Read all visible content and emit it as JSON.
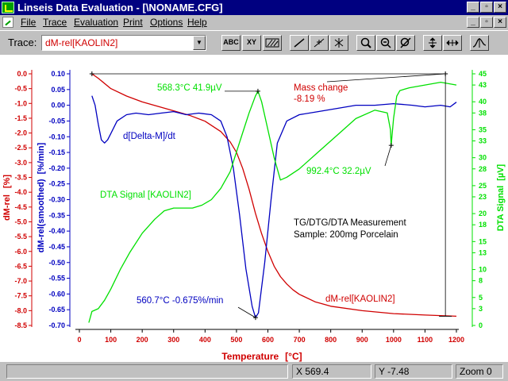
{
  "window": {
    "title": "Linseis Data Evaluation - [\\NONAME.CFG]"
  },
  "menu": [
    "File",
    "Trace",
    "Evaluation",
    "Print",
    "Options",
    "Help"
  ],
  "toolbar": {
    "trace_label": "Trace:",
    "trace_value": "dM-rel[KAOLIN2]",
    "tool_abc": "ABC",
    "tool_xy": "XY"
  },
  "status": {
    "x": "X  569.4",
    "y": "Y -7.48",
    "zoom": "Zoom 0"
  },
  "colors": {
    "dm": "#d00000",
    "dtg": "#0000c0",
    "dta": "#00e000"
  },
  "chart_data": {
    "type": "line",
    "x_ticks": [
      "0",
      "100",
      "200",
      "300",
      "400",
      "500",
      "600",
      "700",
      "800",
      "900",
      "1000",
      "1100",
      "1200"
    ],
    "xlabel": "Temperature",
    "xunit": "[°C]",
    "xlim": [
      0,
      1200
    ],
    "axes": {
      "dm": {
        "title": "dM-rel",
        "unit": "[%]",
        "ticks": [
          "0.0",
          "-0.5",
          "-1.0",
          "-1.5",
          "-2.0",
          "-2.5",
          "-3.0",
          "-3.5",
          "-4.0",
          "-4.5",
          "-5.0",
          "-5.5",
          "-6.0",
          "-6.5",
          "-7.0",
          "-7.5",
          "-8.0",
          "-8.5"
        ],
        "range": [
          -8.5,
          0.0
        ]
      },
      "dtg": {
        "title": "dM-rel(smoothed)",
        "unit": "[%/min]",
        "ticks": [
          "0.10",
          "0.05",
          "0.00",
          "-0.05",
          "-0.10",
          "-0.15",
          "-0.20",
          "-0.25",
          "-0.30",
          "-0.35",
          "-0.40",
          "-0.45",
          "-0.50",
          "-0.55",
          "-0.60",
          "-0.65",
          "-0.70"
        ],
        "range": [
          -0.7,
          0.1
        ]
      },
      "dta": {
        "title": "DTA Signal",
        "unit": "[µV]",
        "ticks": [
          "45",
          "43",
          "40",
          "38",
          "35",
          "33",
          "30",
          "28",
          "25",
          "23",
          "20",
          "18",
          "15",
          "13",
          "10",
          "8",
          "5",
          "3",
          "0"
        ],
        "range": [
          0,
          45
        ]
      }
    },
    "series": [
      {
        "name": "dM-rel[KAOLIN2]",
        "axis": "dm",
        "x": [
          40,
          60,
          100,
          150,
          200,
          250,
          300,
          350,
          400,
          450,
          480,
          500,
          520,
          540,
          560,
          580,
          600,
          620,
          640,
          660,
          680,
          700,
          750,
          800,
          900,
          1000,
          1100,
          1200
        ],
        "y": [
          0.0,
          -0.15,
          -0.5,
          -0.75,
          -0.95,
          -1.1,
          -1.25,
          -1.4,
          -1.6,
          -1.95,
          -2.3,
          -2.65,
          -3.2,
          -3.9,
          -4.7,
          -5.4,
          -6.0,
          -6.5,
          -6.85,
          -7.1,
          -7.3,
          -7.45,
          -7.7,
          -7.85,
          -8.0,
          -8.1,
          -8.15,
          -8.19
        ]
      },
      {
        "name": "d[Delta-M]/dt",
        "axis": "dtg",
        "x": [
          40,
          50,
          60,
          70,
          80,
          90,
          100,
          120,
          150,
          180,
          220,
          260,
          300,
          340,
          380,
          420,
          450,
          470,
          490,
          510,
          530,
          550,
          560.7,
          570,
          590,
          610,
          630,
          660,
          700,
          760,
          820,
          880,
          940,
          1000,
          1060,
          1100,
          1150,
          1180,
          1200
        ],
        "y": [
          0.03,
          0.0,
          -0.06,
          -0.11,
          -0.12,
          -0.11,
          -0.09,
          -0.05,
          -0.03,
          -0.025,
          -0.03,
          -0.025,
          -0.02,
          -0.03,
          -0.025,
          -0.03,
          -0.05,
          -0.1,
          -0.2,
          -0.35,
          -0.52,
          -0.64,
          -0.675,
          -0.66,
          -0.5,
          -0.3,
          -0.12,
          -0.05,
          -0.03,
          -0.02,
          -0.01,
          0.0,
          0.0,
          0.005,
          0.0,
          -0.005,
          0.0,
          -0.005,
          0.01
        ]
      },
      {
        "name": "DTA Signal [KAOLIN2]",
        "axis": "dta",
        "x": [
          30,
          40,
          60,
          80,
          100,
          130,
          160,
          200,
          240,
          270,
          300,
          330,
          360,
          390,
          420,
          450,
          480,
          500,
          520,
          540,
          560,
          568.3,
          580,
          600,
          620,
          640,
          660,
          700,
          760,
          820,
          880,
          940,
          980,
          990,
          992.4,
          1000,
          1010,
          1020,
          1050,
          1100,
          1150,
          1200
        ],
        "y": [
          0.5,
          2.5,
          3.0,
          4.5,
          6.5,
          10.0,
          13.0,
          16.5,
          19.0,
          20.5,
          21.0,
          21.0,
          21.0,
          21.5,
          22.5,
          24.5,
          27.5,
          31.0,
          34.5,
          38.0,
          41.0,
          41.9,
          40.0,
          35.0,
          30.0,
          26.0,
          26.5,
          28.0,
          31.0,
          34.0,
          37.0,
          38.5,
          38.0,
          35.0,
          32.2,
          37.0,
          41.0,
          42.0,
          42.5,
          43.0,
          43.5,
          43.0
        ]
      }
    ],
    "annotations": {
      "dta_peak_1": "568.3°C   41.9µV",
      "mass_change_label": "Mass change",
      "mass_change_value": "-8.19 %",
      "dtg_label": "d[Delta-M]/dt",
      "dta_peak_2": "992.4°C   32.2µV",
      "dta_label": "DTA Signal [KAOLIN2]",
      "measurement_title": "TG/DTG/DTA Measurement",
      "sample_info": "Sample: 200mg Porcelain",
      "dtg_peak": "560.7°C  -0.675%/min",
      "dm_label": "dM-rel[KAOLIN2]"
    }
  }
}
